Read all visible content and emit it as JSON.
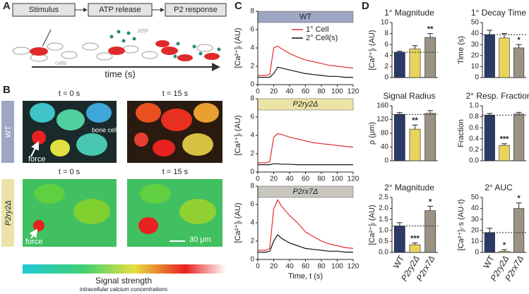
{
  "panel_labels": [
    "A",
    "B",
    "C",
    "D"
  ],
  "diagram": {
    "steps": [
      "Stimulus",
      "ATP release",
      "P2 response"
    ],
    "atp_label": "ATP",
    "cells_label": "cells",
    "axis_label": "time (s)"
  },
  "images": {
    "rows": [
      "WT",
      "P2ry2Δ"
    ],
    "times": [
      "t = 0 s",
      "t = 15 s",
      "t = 0 s",
      "t = 15 s"
    ],
    "annotations": [
      "force",
      "bone cells",
      "force",
      "30 μm"
    ],
    "colorbar_title": "Signal strength",
    "colorbar_subtitle": "intracellular calcium concentrations"
  },
  "chart_data": [
    {
      "type": "line",
      "title": "WT",
      "title_color": "#9ea6c3",
      "y_label": "[Ca²⁺]ᵢ (AU)",
      "legend": true,
      "x": [
        0,
        5,
        10,
        15,
        20,
        25,
        30,
        40,
        50,
        60,
        70,
        80,
        90,
        100,
        110,
        120
      ],
      "xlim": [
        0,
        120
      ],
      "xticks": [
        0,
        20,
        40,
        60,
        80,
        100,
        120
      ],
      "ylim": [
        0,
        8
      ],
      "yticks": [
        0,
        2,
        4,
        6,
        8
      ],
      "series": [
        {
          "name": "1° Cell",
          "color": "#e03030",
          "values": [
            1,
            1,
            1,
            1.1,
            4.0,
            4.2,
            3.9,
            3.4,
            3.0,
            2.7,
            2.5,
            2.3,
            2.1,
            2.0,
            1.9,
            1.8
          ]
        },
        {
          "name": "2° Cell(s)",
          "color": "#111111",
          "values": [
            0.8,
            0.8,
            0.8,
            0.8,
            1.2,
            1.9,
            1.8,
            1.6,
            1.4,
            1.2,
            1.1,
            1.0,
            0.9,
            0.9,
            0.8,
            0.8
          ]
        }
      ]
    },
    {
      "type": "line",
      "title": "P2ry2Δ",
      "italic_title": true,
      "title_color": "#ece3a8",
      "y_label": "[Ca²⁺]ᵢ (AU)",
      "x": [
        0,
        5,
        10,
        15,
        20,
        25,
        30,
        40,
        50,
        60,
        70,
        80,
        90,
        100,
        110,
        120
      ],
      "xlim": [
        0,
        120
      ],
      "xticks": [
        0,
        20,
        40,
        60,
        80,
        100,
        120
      ],
      "ylim": [
        0,
        8
      ],
      "yticks": [
        0,
        2,
        4,
        6,
        8
      ],
      "series": [
        {
          "color": "#e03030",
          "values": [
            1,
            1,
            1,
            1.1,
            3.8,
            4.2,
            4.1,
            3.8,
            3.6,
            3.4,
            3.2,
            3.1,
            3.0,
            2.9,
            2.8,
            2.7
          ]
        },
        {
          "color": "#111111",
          "values": [
            0.8,
            0.8,
            0.8,
            0.8,
            0.9,
            0.9,
            0.85,
            0.85,
            0.8,
            0.8,
            0.8,
            0.8,
            0.8,
            0.8,
            0.8,
            0.8
          ]
        }
      ]
    },
    {
      "type": "line",
      "title": "P2rx7Δ",
      "italic_title": true,
      "title_color": "#c9c6c0",
      "y_label": "[Ca²⁺]ᵢ (AU)",
      "x_label": "Time, t (s)",
      "x": [
        0,
        5,
        10,
        15,
        20,
        25,
        30,
        40,
        50,
        60,
        70,
        80,
        90,
        100,
        110,
        120
      ],
      "xlim": [
        0,
        120
      ],
      "xticks": [
        0,
        20,
        40,
        60,
        80,
        100,
        120
      ],
      "ylim": [
        0,
        8
      ],
      "yticks": [
        0,
        2,
        4,
        6,
        8
      ],
      "series": [
        {
          "color": "#e03030",
          "values": [
            1,
            1,
            1,
            1.2,
            5.5,
            6.5,
            5.8,
            4.8,
            4.0,
            3.0,
            2.5,
            2.0,
            1.7,
            1.5,
            1.3,
            1.2
          ]
        },
        {
          "color": "#111111",
          "values": [
            0.8,
            0.8,
            0.8,
            0.9,
            2.0,
            2.7,
            2.3,
            1.8,
            1.5,
            1.2,
            1.1,
            1.0,
            0.9,
            0.9,
            0.8,
            0.8
          ]
        }
      ]
    },
    {
      "type": "bar",
      "title": "1° Magnitude",
      "y_label": "[Ca²⁺]ᵢ (AU)",
      "categories": [
        null,
        null,
        null
      ],
      "colors": [
        "#2b3a67",
        "#e8d45c",
        "#9a9383"
      ],
      "reference": true,
      "values": [
        4.6,
        5.2,
        7.3
      ],
      "errors": [
        0.2,
        0.6,
        0.7
      ],
      "significance": [
        null,
        null,
        "**"
      ],
      "ylim": [
        0,
        10
      ],
      "yticks": [
        0,
        2,
        4,
        6,
        8,
        10
      ]
    },
    {
      "type": "bar",
      "title": "1° Decay Time",
      "y_label": "Time (s)",
      "categories": [
        null,
        null,
        null
      ],
      "colors": [
        "#2b3a67",
        "#e8d45c",
        "#9a9383"
      ],
      "reference": true,
      "values": [
        39,
        36,
        27
      ],
      "errors": [
        4,
        4,
        3
      ],
      "significance": [
        null,
        null,
        "*"
      ],
      "ylim": [
        0,
        50
      ],
      "yticks": [
        0,
        10,
        20,
        30,
        40,
        50
      ]
    },
    {
      "type": "bar",
      "title": "Signal Radius",
      "y_label": "ρ (μm)",
      "categories": [
        null,
        null,
        null
      ],
      "colors": [
        "#2b3a67",
        "#e8d45c",
        "#9a9383"
      ],
      "reference": true,
      "values": [
        135,
        92,
        138
      ],
      "errors": [
        5,
        12,
        8
      ],
      "significance": [
        null,
        "**",
        null
      ],
      "ylim": [
        0,
        160
      ],
      "yticks": [
        0,
        40,
        80,
        120,
        160
      ]
    },
    {
      "type": "bar",
      "title": "2° Resp. Fraction",
      "y_label": "Fraction",
      "categories": [
        null,
        null,
        null
      ],
      "colors": [
        "#2b3a67",
        "#e8d45c",
        "#9a9383"
      ],
      "reference": true,
      "values": [
        0.83,
        0.28,
        0.85
      ],
      "errors": [
        0.03,
        0.03,
        0.03
      ],
      "significance": [
        null,
        "***",
        null
      ],
      "ylim": [
        0,
        1
      ],
      "yticks": [
        {
          "value": 0,
          "label": "0.0"
        },
        0.2,
        0.4,
        0.6,
        0.8,
        {
          "value": 1,
          "label": "1.0"
        }
      ]
    },
    {
      "type": "bar",
      "title": "2° Magnitude",
      "y_label": "[Ca²⁺]ᵢ (AU)",
      "categories": [
        "WT",
        "P2ry2Δ",
        "P2rx7Δ"
      ],
      "colors": [
        "#2b3a67",
        "#e8d45c",
        "#9a9383"
      ],
      "reference": true,
      "values": [
        1.2,
        0.35,
        1.9
      ],
      "errors": [
        0.15,
        0.08,
        0.2
      ],
      "significance": [
        null,
        "***",
        "*"
      ],
      "ylim": [
        0,
        2.5
      ],
      "yticks": [
        {
          "value": 0,
          "label": "0.0"
        },
        0.5,
        {
          "value": 1,
          "label": "1.0"
        },
        1.5,
        {
          "value": 2,
          "label": "2.0"
        },
        2.5
      ]
    },
    {
      "type": "bar",
      "title": "2° AUC",
      "y_label": "[Ca²⁺]ᵢ·s (AU·t)",
      "categories": [
        "WT",
        "P2ry2Δ",
        "P2rx7Δ"
      ],
      "colors": [
        "#2b3a67",
        "#e8d45c",
        "#9a9383"
      ],
      "reference": true,
      "values": [
        18,
        1,
        40
      ],
      "errors": [
        4,
        1.5,
        5
      ],
      "significance": [
        null,
        "*",
        "*"
      ],
      "ylim": [
        0,
        50
      ],
      "yticks": [
        0,
        10,
        20,
        30,
        40,
        50
      ]
    }
  ]
}
